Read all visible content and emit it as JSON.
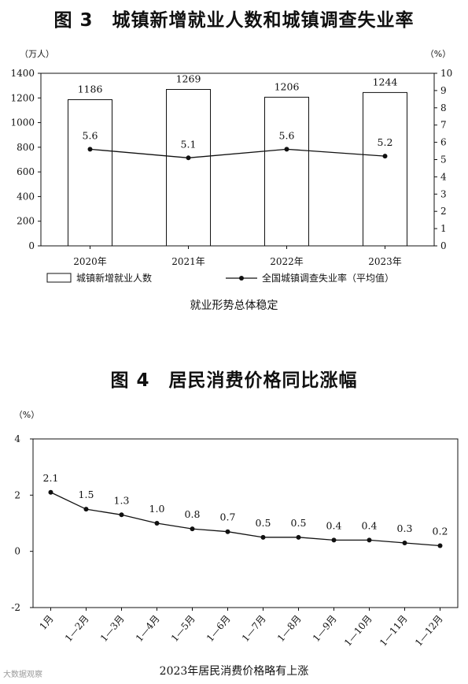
{
  "figure3": {
    "title": "图 3　城镇新增就业人数和城镇调查失业率",
    "caption": "就业形势总体稳定",
    "chart_data": {
      "type": "bar",
      "categories": [
        "2020年",
        "2021年",
        "2022年",
        "2023年"
      ],
      "series": [
        {
          "name": "城镇新增就业人数",
          "type": "bar",
          "axis": "left",
          "values": [
            1186,
            1269,
            1206,
            1244
          ]
        },
        {
          "name": "全国城镇调查失业率（平均值）",
          "type": "line",
          "axis": "right",
          "values": [
            5.6,
            5.1,
            5.6,
            5.2
          ]
        }
      ],
      "y_left": {
        "unit": "（万人）",
        "ylim": [
          0,
          1400
        ],
        "ticks": [
          0,
          200,
          400,
          600,
          800,
          1000,
          1200,
          1400
        ]
      },
      "y_right": {
        "unit": "（%）",
        "ylim": [
          0,
          10
        ],
        "ticks": [
          0,
          1,
          2,
          3,
          4,
          5,
          6,
          7,
          8,
          9,
          10
        ]
      },
      "grid": false,
      "legend_position": "bottom"
    }
  },
  "figure4": {
    "title": "图 4　居民消费价格同比涨幅",
    "caption": "2023年居民消费价格略有上涨",
    "chart_data": {
      "type": "line",
      "categories": [
        "1月",
        "1—2月",
        "1—3月",
        "1—4月",
        "1—5月",
        "1—6月",
        "1—7月",
        "1—8月",
        "1—9月",
        "1—10月",
        "1—11月",
        "1—12月"
      ],
      "values": [
        2.1,
        1.5,
        1.3,
        1.0,
        0.8,
        0.7,
        0.5,
        0.5,
        0.4,
        0.4,
        0.3,
        0.2
      ],
      "value_labels": [
        "2.1",
        "1.5",
        "1.3",
        "1.0",
        "0.8",
        "0.7",
        "0.5",
        "0.5",
        "0.4",
        "0.4",
        "0.3",
        "0.2"
      ],
      "y_unit": "（%）",
      "ylim": [
        -2,
        4
      ],
      "yticks": [
        -2,
        0,
        2,
        4
      ],
      "grid": false
    }
  },
  "watermark": "大数据观察"
}
